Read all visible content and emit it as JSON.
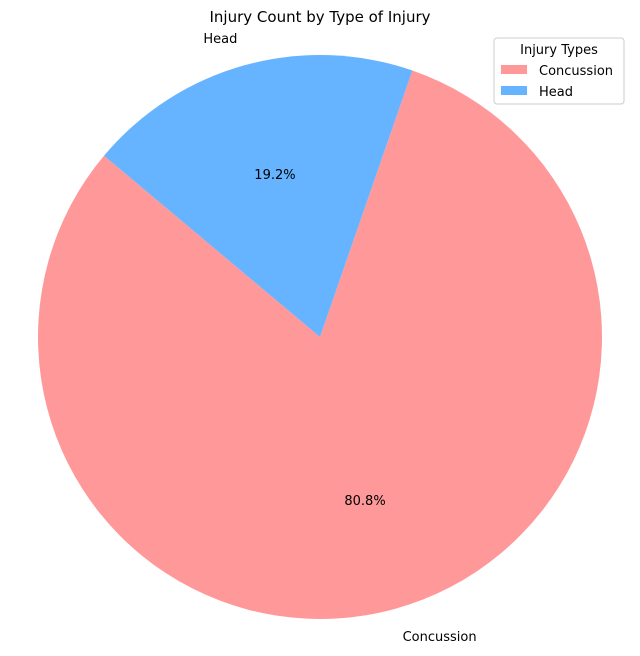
{
  "chart_data": {
    "type": "pie",
    "title": "Injury Count by Type of Injury",
    "categories": [
      "Concussion",
      "Head"
    ],
    "values": [
      80.8,
      19.2
    ],
    "percent_labels": [
      "80.8%",
      "19.2%"
    ],
    "colors": [
      "#ff9999",
      "#66b3ff"
    ],
    "legend": {
      "title": "Injury Types",
      "placement": "upper right",
      "entries": [
        "Concussion",
        "Head"
      ]
    }
  }
}
